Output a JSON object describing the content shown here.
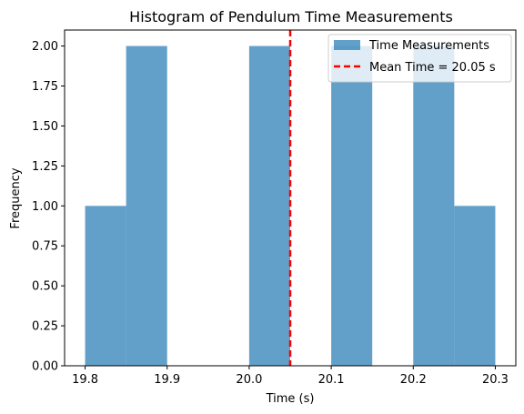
{
  "chart_data": {
    "type": "bar",
    "title": "Histogram of Pendulum Time Measurements",
    "xlabel": "Time (s)",
    "ylabel": "Frequency",
    "xlim": [
      19.775,
      20.325
    ],
    "ylim": [
      0,
      2.1
    ],
    "bins": [
      {
        "start": 19.8,
        "end": 19.85,
        "count": 1
      },
      {
        "start": 19.85,
        "end": 19.9,
        "count": 2
      },
      {
        "start": 19.9,
        "end": 19.95,
        "count": 0
      },
      {
        "start": 19.95,
        "end": 20.0,
        "count": 0
      },
      {
        "start": 20.0,
        "end": 20.05,
        "count": 2
      },
      {
        "start": 20.05,
        "end": 20.1,
        "count": 0
      },
      {
        "start": 20.1,
        "end": 20.15,
        "count": 2
      },
      {
        "start": 20.15,
        "end": 20.2,
        "count": 0
      },
      {
        "start": 20.2,
        "end": 20.25,
        "count": 2
      },
      {
        "start": 20.25,
        "end": 20.3,
        "count": 1
      }
    ],
    "xticks": [
      {
        "value": 19.8,
        "label": "19.8"
      },
      {
        "value": 19.9,
        "label": "19.9"
      },
      {
        "value": 20.0,
        "label": "20.0"
      },
      {
        "value": 20.1,
        "label": "20.1"
      },
      {
        "value": 20.2,
        "label": "20.2"
      },
      {
        "value": 20.3,
        "label": "20.3"
      }
    ],
    "yticks": [
      {
        "value": 0.0,
        "label": "0.00"
      },
      {
        "value": 0.25,
        "label": "0.25"
      },
      {
        "value": 0.5,
        "label": "0.50"
      },
      {
        "value": 0.75,
        "label": "0.75"
      },
      {
        "value": 1.0,
        "label": "1.00"
      },
      {
        "value": 1.25,
        "label": "1.25"
      },
      {
        "value": 1.5,
        "label": "1.50"
      },
      {
        "value": 1.75,
        "label": "1.75"
      },
      {
        "value": 2.0,
        "label": "2.00"
      }
    ],
    "mean_line": {
      "value": 20.05,
      "label": "Mean Time = 20.05 s",
      "color": "#ff0000"
    },
    "bar_color": "#1f77b4",
    "bar_opacity": 0.7,
    "legend": {
      "position": "top-right",
      "entries": [
        {
          "label": "Time Measurements",
          "kind": "patch"
        },
        {
          "label": "Mean Time = 20.05 s",
          "kind": "dashed-line"
        }
      ]
    },
    "grid": false
  }
}
